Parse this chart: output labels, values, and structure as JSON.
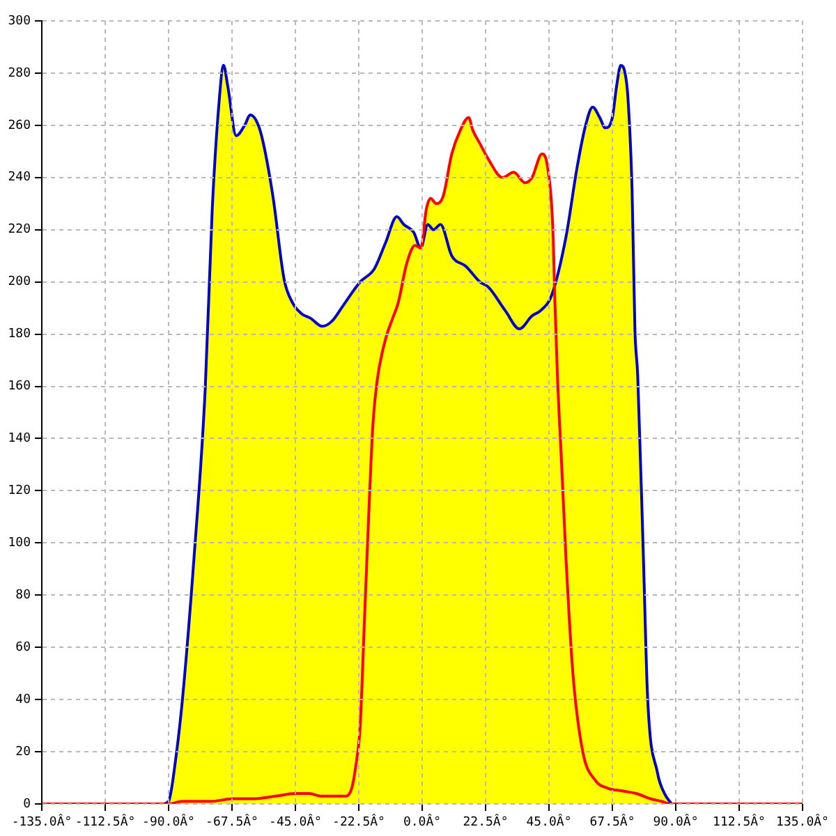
{
  "chart_data": {
    "type": "area",
    "xlim": [
      -135,
      135
    ],
    "xticks": [
      {
        "value": -135,
        "label": "-135.0Â°"
      },
      {
        "value": -112.5,
        "label": "-112.5Â°"
      },
      {
        "value": -90,
        "label": "-90.0Â°"
      },
      {
        "value": -67.5,
        "label": "-67.5Â°"
      },
      {
        "value": -45,
        "label": "-45.0Â°"
      },
      {
        "value": -22.5,
        "label": "-22.5Â°"
      },
      {
        "value": 0,
        "label": "0.0Â°"
      },
      {
        "value": 22.5,
        "label": "22.5Â°"
      },
      {
        "value": 45,
        "label": "45.0Â°"
      },
      {
        "value": 67.5,
        "label": "67.5Â°"
      },
      {
        "value": 90,
        "label": "90.0Â°"
      },
      {
        "value": 112.5,
        "label": "112.5Â°"
      },
      {
        "value": 135,
        "label": "135.0Â°"
      }
    ],
    "ylim": [
      0,
      300
    ],
    "yticks": [
      0,
      20,
      40,
      60,
      80,
      100,
      120,
      140,
      160,
      180,
      200,
      220,
      240,
      260,
      280,
      300
    ],
    "grid": true,
    "series": [
      {
        "color": "#ffff00",
        "x": [
          -135,
          -92,
          -90,
          -87.5,
          -85,
          -81,
          -77,
          -74.5,
          -72,
          -70.5,
          -69,
          -66,
          -63,
          -61,
          -59,
          -57,
          -53,
          -49,
          -46,
          -43,
          -39.5,
          -35.5,
          -32,
          -28,
          -22,
          -17,
          -13,
          -9,
          -6.5,
          -3,
          -0.5,
          1.5,
          3,
          5,
          7.5,
          10.5,
          13.5,
          16.5,
          18,
          20.5,
          23.5,
          28.5,
          32.5,
          36.5,
          39,
          42.5,
          44.5,
          46.5,
          47,
          51,
          55,
          58,
          60.5,
          63,
          65,
          67.5,
          69,
          70.5,
          72,
          73,
          74.5,
          75.5,
          76.5,
          78.5,
          80,
          83.5,
          86,
          88.5,
          135
        ],
        "values": [
          0,
          0,
          1,
          17,
          41,
          94,
          159,
          228,
          270,
          283,
          275,
          256,
          260,
          264,
          262,
          256,
          233,
          201,
          192,
          188,
          186,
          183,
          185,
          191,
          200,
          205,
          215,
          225,
          222,
          219,
          213,
          228,
          232,
          230,
          233,
          249,
          258,
          263,
          258,
          253,
          247,
          240,
          242,
          238,
          240,
          249,
          244,
          217,
          198,
          217,
          244,
          260,
          267,
          263,
          259,
          263,
          275,
          283,
          280,
          271,
          235,
          182,
          164,
          95,
          41,
          12,
          4,
          0,
          0
        ]
      },
      {
        "type": "line",
        "color": "#0000cc",
        "x": [
          -92,
          -90,
          -87.5,
          -85,
          -81,
          -77,
          -74.5,
          -72,
          -70.5,
          -69,
          -66,
          -63,
          -61,
          -59,
          -57,
          -53,
          -49,
          -46,
          -43,
          -39.5,
          -35.5,
          -32,
          -28,
          -22,
          -17,
          -13,
          -9,
          -6.5,
          -3,
          -0.5,
          2,
          4,
          6.5,
          10.5,
          15.5,
          20.5,
          23.5,
          29.5,
          34.5,
          39,
          42,
          46,
          51,
          55,
          58,
          60.5,
          63,
          65,
          67.5,
          69,
          70.5,
          72,
          73,
          74.5,
          75.5,
          76.5,
          78.5,
          80,
          83.5,
          86,
          88.5
        ],
        "values": [
          0,
          1,
          17,
          41,
          94,
          159,
          228,
          270,
          283,
          275,
          256,
          260,
          264,
          262,
          256,
          233,
          201,
          192,
          188,
          186,
          183,
          185,
          191,
          200,
          205,
          215,
          225,
          222,
          219,
          213,
          222,
          220,
          222,
          210,
          206,
          200,
          198,
          189,
          182,
          187,
          189,
          195,
          217,
          244,
          260,
          267,
          263,
          259,
          263,
          275,
          283,
          280,
          271,
          235,
          182,
          164,
          95,
          41,
          12,
          4,
          0
        ]
      },
      {
        "type": "line",
        "color": "#ff0000",
        "x": [
          -135,
          -90,
          -85,
          -75,
          -67,
          -60,
          -52,
          -45,
          -40,
          -36,
          -31,
          -27,
          -25,
          -23.5,
          -22,
          -20.5,
          -19,
          -17.5,
          -16,
          -13,
          -10.5,
          -8.5,
          -5.5,
          -2.5,
          -0.5,
          1.5,
          3,
          5,
          7.5,
          10.5,
          13.5,
          16.5,
          18,
          20.5,
          23.5,
          28.5,
          32.5,
          36.5,
          39,
          42.5,
          44.5,
          46.5,
          47,
          48,
          49.5,
          51,
          53.5,
          57,
          61.5,
          66,
          71,
          76,
          81,
          85,
          88,
          135
        ],
        "values": [
          0,
          0,
          1,
          1,
          2,
          2,
          3,
          4,
          4,
          3,
          3,
          3,
          6,
          15,
          30,
          70,
          110,
          145,
          162,
          178,
          186,
          192,
          207,
          214,
          213,
          228,
          232,
          230,
          233,
          249,
          258,
          263,
          258,
          253,
          247,
          240,
          242,
          238,
          240,
          249,
          244,
          217,
          196,
          164,
          130,
          95,
          50,
          20,
          9,
          6,
          5,
          4,
          2,
          1,
          0,
          0
        ]
      }
    ]
  }
}
